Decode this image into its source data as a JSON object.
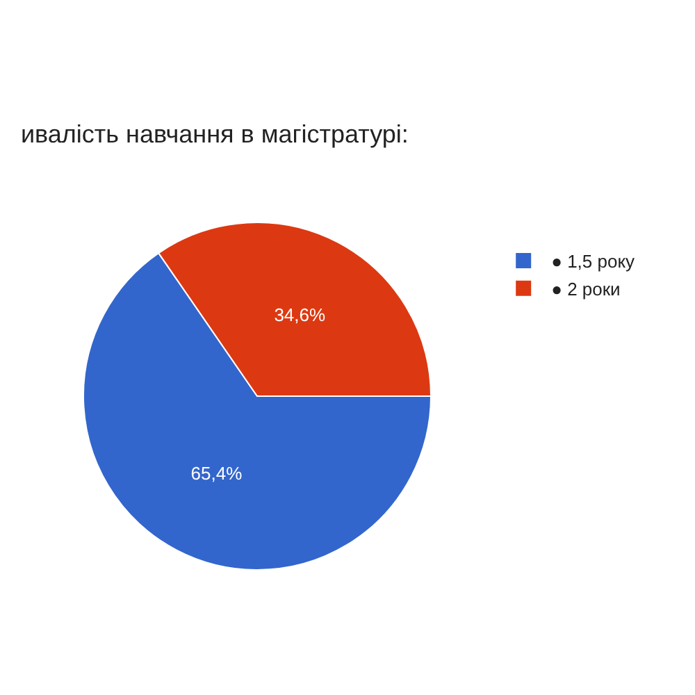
{
  "chart_data": {
    "type": "pie",
    "title": "ивалість навчання в магістратурі:",
    "categories": [
      "● 1,5 року",
      "● 2 роки"
    ],
    "values": [
      65.4,
      34.6
    ],
    "colors": [
      "#3366cc",
      "#dc3912"
    ],
    "value_labels": [
      "65,4%",
      "34,6%"
    ],
    "legend": "top right"
  }
}
